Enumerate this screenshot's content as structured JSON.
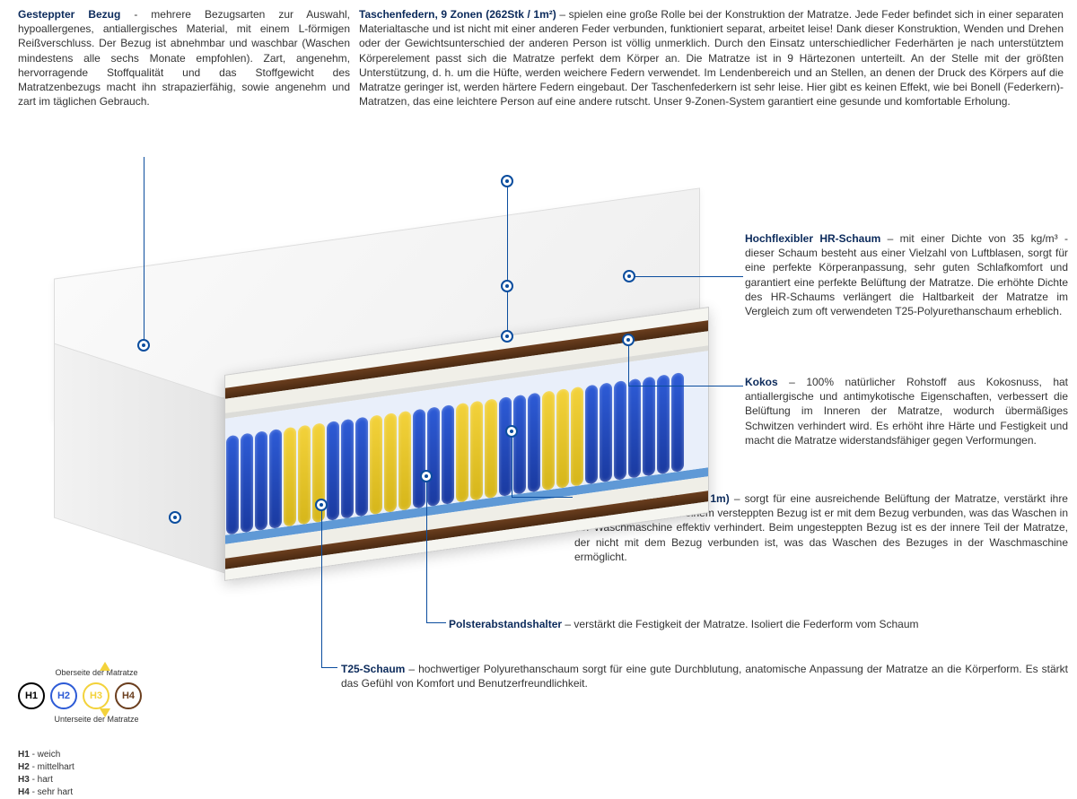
{
  "sections": {
    "bezug": {
      "title": "Gesteppter Bezug",
      "text": " - mehrere Bezugsarten zur Auswahl, hypoallergenes, antiallergisches Material, mit einem L-förmigen Reißverschluss. Der Bezug ist abnehmbar und waschbar (Waschen mindestens alle sechs Monate empfohlen). Zart, angenehm, hervorragende Stoffqualität und das Stoffgewicht des Matratzenbezugs macht ihn strapazierfähig, sowie angenehm und zart im täglichen Gebrauch."
    },
    "federn": {
      "title": "Taschenfedern, 9 Zonen (262Stk / 1m²)",
      "text": " – spielen eine große Rolle bei der Konstruktion der Matratze. Jede Feder befindet sich in einer separaten Materialtasche und ist nicht mit einer anderen Feder verbunden, funktioniert separat, arbeitet leise! Dank dieser Konstruktion, Wenden und Drehen oder der Gewichtsunterschied der anderen Person ist völlig unmerklich. Durch den Einsatz unterschiedlicher Federhärten je nach unterstütztem Körperelement passt sich die Matratze perfekt dem Körper an. Die Matratze ist in 9 Härtezonen unterteilt. An der Stelle mit der größten Unterstützung, d. h. um die Hüfte, werden weichere Federn verwendet. Im Lendenbereich und an Stellen, an denen der Druck des Körpers auf die Matratze geringer ist, werden härtere Federn eingebaut. Der Taschenfederkern ist sehr leise. Hier gibt es keinen Effekt, wie bei Bonell (Federkern)- Matratzen, das eine leichtere Person auf eine andere rutscht. Unser 9-Zonen-System garantiert eine gesunde und komfortable Erholung."
    },
    "hr": {
      "title": "Hochflexibler HR-Schaum",
      "text": " – mit einer Dichte von 35 kg/m³ - dieser Schaum besteht aus einer Vielzahl von Luftblasen, sorgt für eine perfekte Körperanpassung, sehr guten Schlafkomfort und garantiert eine perfekte Belüftung der Matratze. Die erhöhte Dichte des HR-Schaums verlängert die Haltbarkeit der Matratze im Vergleich zum oft verwendeten T25-Polyurethanschaum erheblich."
    },
    "kokos": {
      "title": "Kokos",
      "text": " – 100% natürlicher Rohstoff aus Kokosnuss, hat antiallergische und antimykotische Eigenschaften, verbessert die Belüftung im Inneren der Matratze, wodurch übermäßiges Schwitzen verhindert wird. Es erhöht ihre Härte und Festigkeit und macht die Matratze widerstandsfähiger gegen Verformungen."
    },
    "klima": {
      "title": "Klimafaser, Watte (150g / 1m)",
      "text": " – sorgt für eine ausreichende Belüftung der Matratze, verstärkt ihre Strapazierfähigkeit - in einem versteppten Bezug ist er mit dem Bezug verbunden, was das Waschen in der Waschmaschine effektiv verhindert. Beim ungesteppten Bezug ist es der innere Teil der Matratze, der nicht mit dem Bezug verbunden ist, was das Waschen des Bezuges in der Waschmaschine ermöglicht."
    },
    "polster": {
      "title": "Polsterabstandshalter",
      "text": " – verstärkt die Festigkeit der Matratze. Isoliert die Federform vom Schaum"
    },
    "t25": {
      "title": "T25-Schaum",
      "text": " – hochwertiger Polyurethanschaum sorgt für eine gute Durchblutung, anatomische Anpassung der Matratze an die Körperform. Es stärkt das Gefühl von Komfort und Benutzerfreundlichkeit."
    }
  },
  "legend": {
    "top_label": "Oberseite der Matratze",
    "bottom_label": "Unterseite der Matratze",
    "items": [
      {
        "code": "H1",
        "label": "weich",
        "color": "#000000"
      },
      {
        "code": "H2",
        "label": "mittelhart",
        "color": "#2d5bd6"
      },
      {
        "code": "H3",
        "label": "hart",
        "color": "#f3d23b"
      },
      {
        "code": "H4",
        "label": "sehr hart",
        "color": "#6b3e1e"
      }
    ]
  },
  "style": {
    "title_color": "#0b2a5b",
    "accent_color": "#0b4d9e",
    "spring_colors": {
      "blue": "#2d5bd6",
      "yellow": "#f3d23b"
    },
    "coconut_color": "#6b3e1e",
    "spring_pattern": [
      "blue",
      "blue",
      "blue",
      "blue",
      "yellow",
      "yellow",
      "yellow",
      "blue",
      "blue",
      "blue",
      "yellow",
      "yellow",
      "yellow",
      "blue",
      "blue",
      "blue",
      "yellow",
      "yellow",
      "yellow",
      "blue",
      "blue",
      "blue",
      "yellow",
      "yellow",
      "yellow",
      "blue",
      "blue",
      "blue",
      "blue",
      "blue",
      "blue",
      "blue"
    ]
  }
}
